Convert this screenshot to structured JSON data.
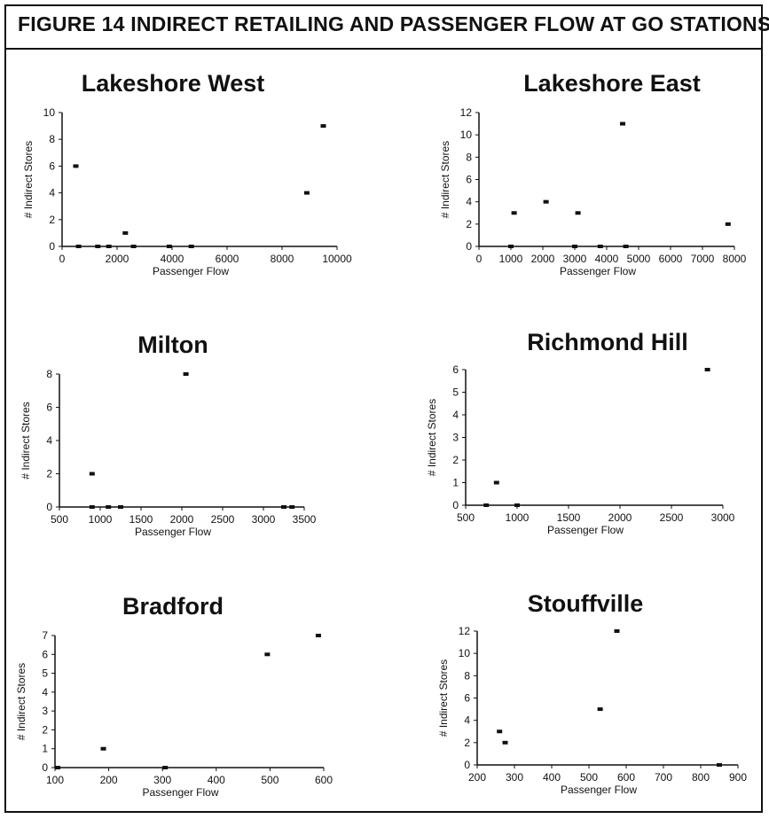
{
  "figure_title": "FIGURE 14  INDIRECT RETAILING AND PASSENGER FLOW AT GO STATIONS",
  "chart_data": [
    {
      "type": "scatter",
      "title": "Lakeshore West",
      "xlabel": "Passenger Flow",
      "ylabel": "# Indirect Stores",
      "xlim": [
        0,
        10000
      ],
      "ylim": [
        0,
        10
      ],
      "xticks": [
        0,
        2000,
        4000,
        6000,
        8000,
        10000
      ],
      "xtick_labels": [
        "0",
        "2000",
        "4000",
        "6000",
        "8000",
        "10000"
      ],
      "yticks": [
        0,
        2,
        4,
        6,
        8,
        10
      ],
      "ytick_labels": [
        "0",
        "2",
        "4",
        "6",
        "8",
        "10"
      ],
      "points": [
        {
          "x": 500,
          "y": 6
        },
        {
          "x": 600,
          "y": 0
        },
        {
          "x": 1300,
          "y": 0
        },
        {
          "x": 1700,
          "y": 0
        },
        {
          "x": 2300,
          "y": 1
        },
        {
          "x": 2600,
          "y": 0
        },
        {
          "x": 3900,
          "y": 0
        },
        {
          "x": 4700,
          "y": 0
        },
        {
          "x": 8900,
          "y": 4
        },
        {
          "x": 9500,
          "y": 9
        }
      ]
    },
    {
      "type": "scatter",
      "title": "Lakeshore East",
      "xlabel": "Passenger Flow",
      "ylabel": "# Indirect Stores",
      "xlim": [
        0,
        8000
      ],
      "ylim": [
        0,
        12
      ],
      "xticks": [
        0,
        1000,
        2000,
        3000,
        4000,
        5000,
        6000,
        7000,
        8000
      ],
      "xtick_labels": [
        "0",
        "1000",
        "2000",
        "3000",
        "4000",
        "5000",
        "6000",
        "7000",
        "8000"
      ],
      "yticks": [
        0,
        2,
        4,
        6,
        8,
        10,
        12
      ],
      "ytick_labels": [
        "0",
        "2",
        "4",
        "6",
        "8",
        "10",
        "12"
      ],
      "points": [
        {
          "x": 1000,
          "y": 0
        },
        {
          "x": 1100,
          "y": 3
        },
        {
          "x": 2100,
          "y": 4
        },
        {
          "x": 3000,
          "y": 0
        },
        {
          "x": 3100,
          "y": 3
        },
        {
          "x": 3800,
          "y": 0
        },
        {
          "x": 4500,
          "y": 11
        },
        {
          "x": 4600,
          "y": 0
        },
        {
          "x": 7800,
          "y": 2
        }
      ]
    },
    {
      "type": "scatter",
      "title": "Milton",
      "xlabel": "Passenger Flow",
      "ylabel": "# Indirect Stores",
      "xlim": [
        500,
        3500
      ],
      "ylim": [
        0,
        8
      ],
      "xticks": [
        500,
        1000,
        1500,
        2000,
        2500,
        3000,
        3500
      ],
      "xtick_labels": [
        "500",
        "1000",
        "1500",
        "2000",
        "2500",
        "3000",
        "3500"
      ],
      "yticks": [
        0,
        2,
        4,
        6,
        8
      ],
      "ytick_labels": [
        "0",
        "2",
        "4",
        "6",
        "8"
      ],
      "points": [
        {
          "x": 900,
          "y": 2
        },
        {
          "x": 900,
          "y": 0
        },
        {
          "x": 1100,
          "y": 0
        },
        {
          "x": 1250,
          "y": 0
        },
        {
          "x": 2050,
          "y": 8
        },
        {
          "x": 3250,
          "y": 0
        },
        {
          "x": 3350,
          "y": 0
        }
      ]
    },
    {
      "type": "scatter",
      "title": "Richmond Hill",
      "xlabel": "Passenger Flow",
      "ylabel": "# Indirect Stores",
      "xlim": [
        500,
        3000
      ],
      "ylim": [
        0,
        6
      ],
      "xticks": [
        500,
        1000,
        1500,
        2000,
        2500,
        3000
      ],
      "xtick_labels": [
        "500",
        "1000",
        "1500",
        "2000",
        "2500",
        "3000"
      ],
      "yticks": [
        0,
        1,
        2,
        3,
        4,
        5,
        6
      ],
      "ytick_labels": [
        "0",
        "1",
        "2",
        "3",
        "4",
        "5",
        "6"
      ],
      "points": [
        {
          "x": 700,
          "y": 0
        },
        {
          "x": 800,
          "y": 1
        },
        {
          "x": 1000,
          "y": 0
        },
        {
          "x": 2850,
          "y": 6
        }
      ]
    },
    {
      "type": "scatter",
      "title": "Bradford",
      "xlabel": "Passenger Flow",
      "ylabel": "# Indirect Stores",
      "xlim": [
        100,
        600
      ],
      "ylim": [
        0,
        7
      ],
      "xticks": [
        100,
        200,
        300,
        400,
        500,
        600
      ],
      "xtick_labels": [
        "100",
        "200",
        "300",
        "400",
        "500",
        "600"
      ],
      "yticks": [
        0,
        1,
        2,
        3,
        4,
        5,
        6,
        7
      ],
      "ytick_labels": [
        "0",
        "1",
        "2",
        "3",
        "4",
        "5",
        "6",
        "7"
      ],
      "points": [
        {
          "x": 105,
          "y": 0
        },
        {
          "x": 190,
          "y": 1
        },
        {
          "x": 305,
          "y": 0
        },
        {
          "x": 495,
          "y": 6
        },
        {
          "x": 590,
          "y": 7
        }
      ]
    },
    {
      "type": "scatter",
      "title": "Stouffville",
      "xlabel": "Passenger Flow",
      "ylabel": "# Indirect Stores",
      "xlim": [
        200,
        900
      ],
      "ylim": [
        0,
        12
      ],
      "xticks": [
        200,
        300,
        400,
        500,
        600,
        700,
        800,
        900
      ],
      "xtick_labels": [
        "200",
        "300",
        "400",
        "500",
        "600",
        "700",
        "800",
        "900"
      ],
      "yticks": [
        0,
        2,
        4,
        6,
        8,
        10,
        12
      ],
      "ytick_labels": [
        "0",
        "2",
        "4",
        "6",
        "8",
        "10",
        "12"
      ],
      "points": [
        {
          "x": 260,
          "y": 3
        },
        {
          "x": 275,
          "y": 2
        },
        {
          "x": 530,
          "y": 5
        },
        {
          "x": 575,
          "y": 12
        },
        {
          "x": 850,
          "y": 0
        }
      ]
    }
  ]
}
